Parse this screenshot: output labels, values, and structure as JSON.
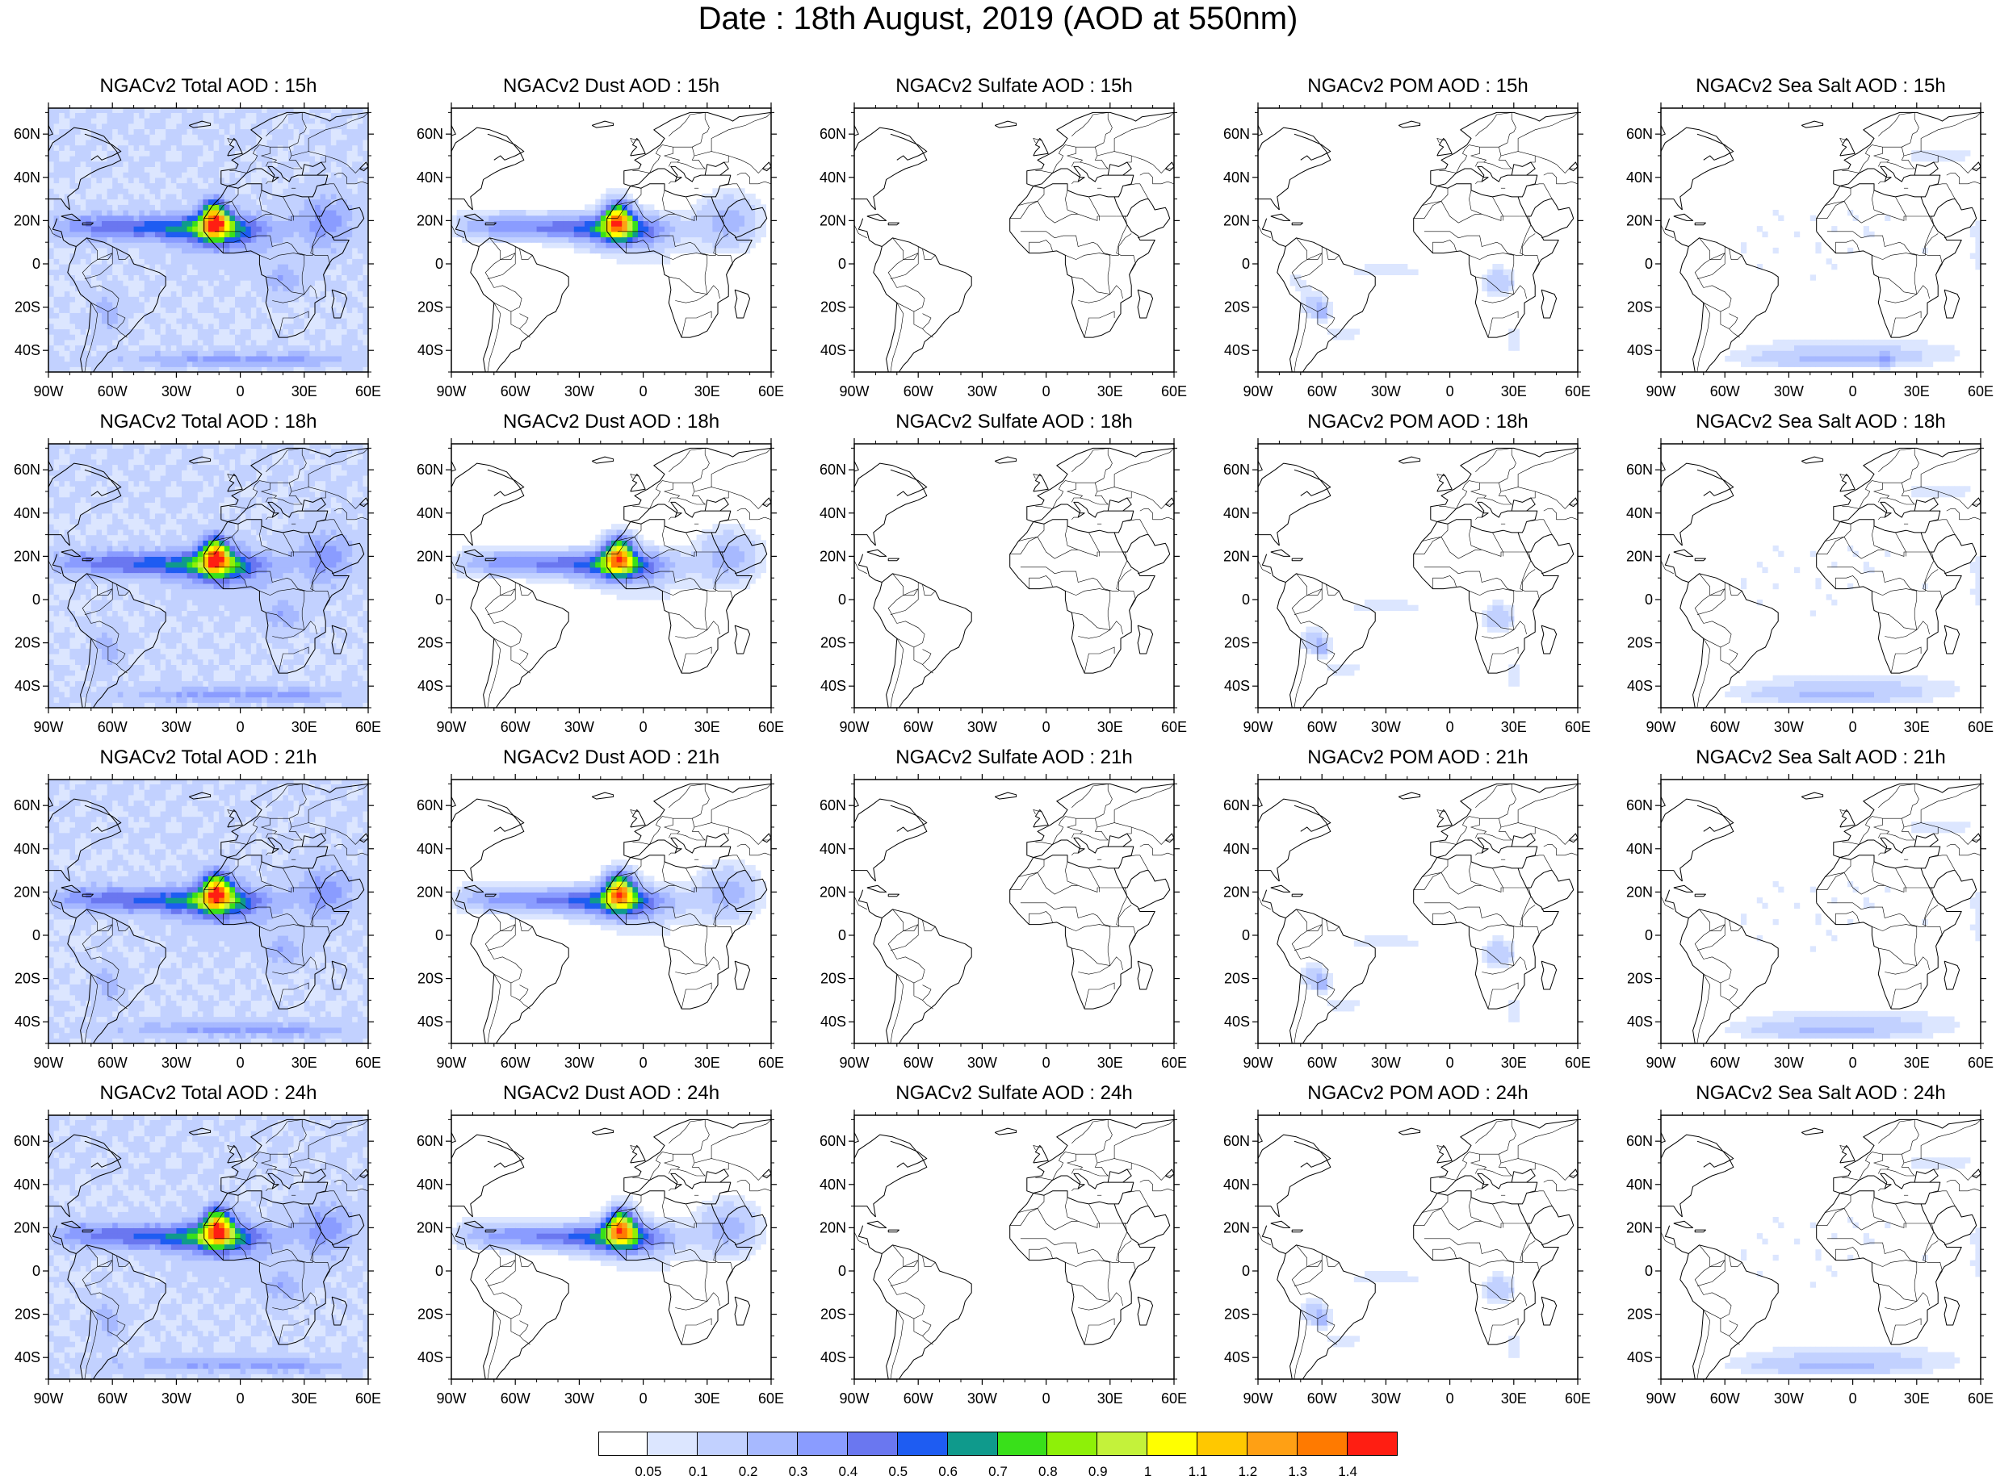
{
  "title": "Date : 18th August, 2019 (AOD at 550nm)",
  "colors": {
    "coast": "#000000",
    "levels": [
      "#ffffff",
      "#dce6ff",
      "#c2d1ff",
      "#a7b9ff",
      "#8a9cff",
      "#6a77f0",
      "#1e5cf2",
      "#0f9a8c",
      "#39e01a",
      "#8ef008",
      "#c4f23a",
      "#ffff00",
      "#ffc800",
      "#ffa014",
      "#ff7a00",
      "#ff1e12"
    ]
  },
  "colorbar": {
    "labels": [
      "0.05",
      "0.1",
      "0.2",
      "0.3",
      "0.4",
      "0.5",
      "0.6",
      "0.7",
      "0.8",
      "0.9",
      "1",
      "1.1",
      "1.2",
      "1.3",
      "1.4"
    ]
  },
  "axes": {
    "lon_labels": [
      "90W",
      "60W",
      "30W",
      "0",
      "30E",
      "60E"
    ],
    "lat_labels": [
      "60N",
      "40N",
      "20N",
      "0",
      "20S",
      "40S"
    ]
  },
  "panels": [
    {
      "title": "NGACv2 Total AOD : 15h",
      "field": "total",
      "hour": 15
    },
    {
      "title": "NGACv2 Dust AOD : 15h",
      "field": "dust",
      "hour": 15
    },
    {
      "title": "NGACv2 Sulfate AOD : 15h",
      "field": "sulfate",
      "hour": 15
    },
    {
      "title": "NGACv2 POM AOD : 15h",
      "field": "pom",
      "hour": 15
    },
    {
      "title": "NGACv2 Sea Salt AOD : 15h",
      "field": "seasalt",
      "hour": 15
    },
    {
      "title": "NGACv2 Total AOD : 18h",
      "field": "total",
      "hour": 18
    },
    {
      "title": "NGACv2 Dust AOD : 18h",
      "field": "dust",
      "hour": 18
    },
    {
      "title": "NGACv2 Sulfate AOD : 18h",
      "field": "sulfate",
      "hour": 18
    },
    {
      "title": "NGACv2 POM AOD : 18h",
      "field": "pom",
      "hour": 18
    },
    {
      "title": "NGACv2 Sea Salt AOD : 18h",
      "field": "seasalt",
      "hour": 18
    },
    {
      "title": "NGACv2 Total AOD : 21h",
      "field": "total",
      "hour": 21
    },
    {
      "title": "NGACv2 Dust AOD : 21h",
      "field": "dust",
      "hour": 21
    },
    {
      "title": "NGACv2 Sulfate AOD : 21h",
      "field": "sulfate",
      "hour": 21
    },
    {
      "title": "NGACv2 POM AOD : 21h",
      "field": "pom",
      "hour": 21
    },
    {
      "title": "NGACv2 Sea Salt AOD : 21h",
      "field": "seasalt",
      "hour": 21
    },
    {
      "title": "NGACv2 Total AOD : 24h",
      "field": "total",
      "hour": 24
    },
    {
      "title": "NGACv2 Dust AOD : 24h",
      "field": "dust",
      "hour": 24
    },
    {
      "title": "NGACv2 Sulfate AOD : 24h",
      "field": "sulfate",
      "hour": 24
    },
    {
      "title": "NGACv2 POM AOD : 24h",
      "field": "pom",
      "hour": 24
    },
    {
      "title": "NGACv2 Sea Salt  AOD : 24h",
      "field": "seasalt",
      "hour": 24
    }
  ]
}
